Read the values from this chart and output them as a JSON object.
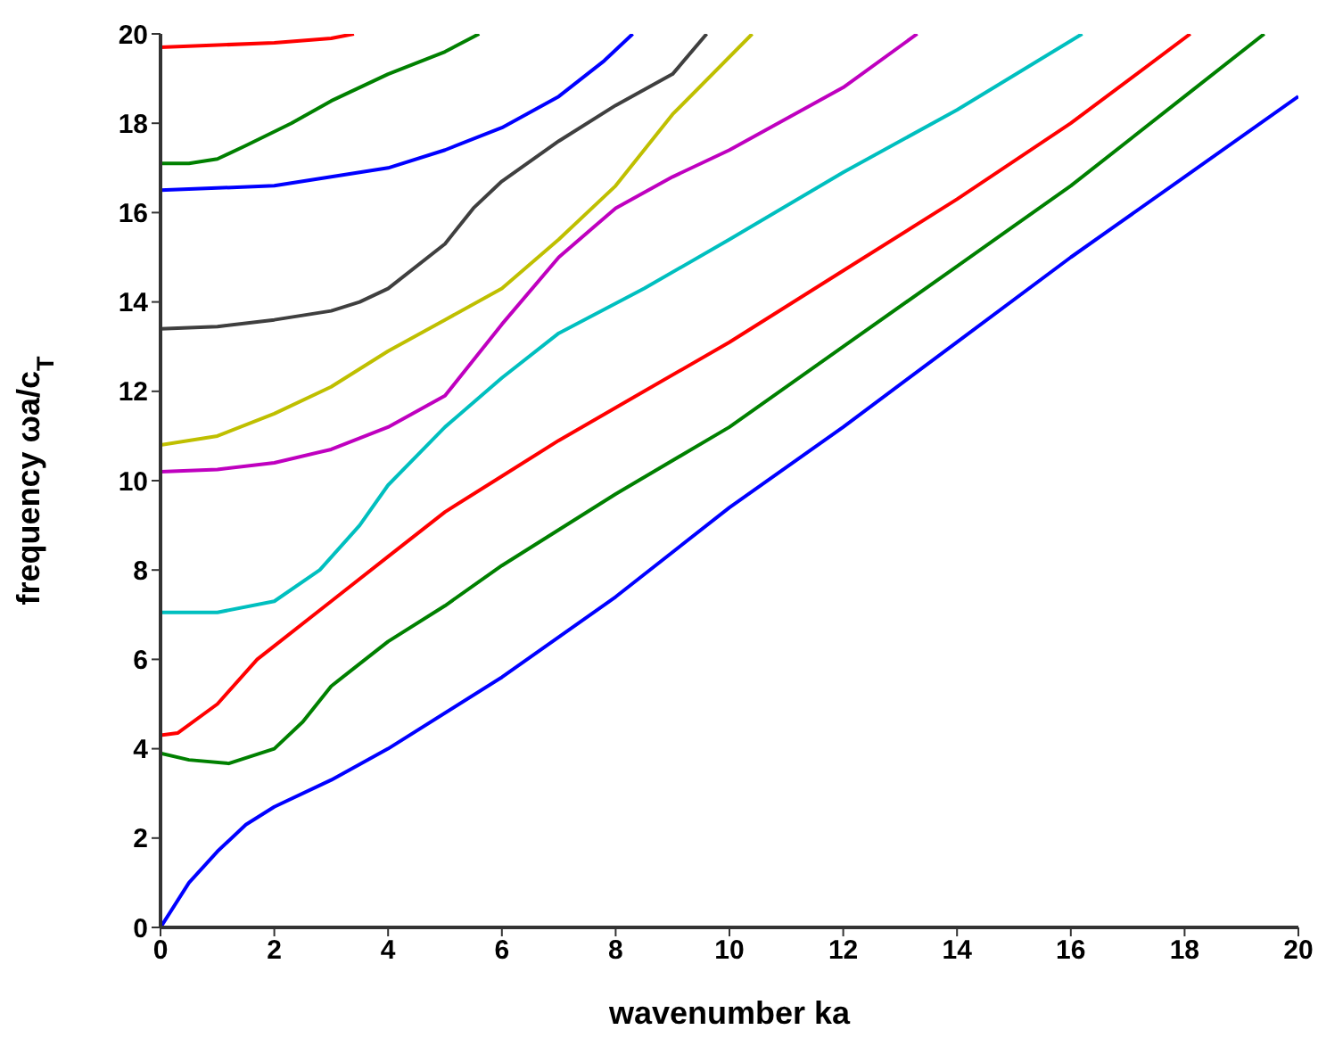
{
  "chart_data": {
    "type": "line",
    "xlabel": "wavenumber  ka",
    "ylabel": "frequency  ωa/c$_{T}$",
    "xlim": [
      0,
      20
    ],
    "ylim": [
      0,
      20
    ],
    "xticks": [
      0,
      2,
      4,
      6,
      8,
      10,
      12,
      14,
      16,
      18,
      20
    ],
    "yticks": [
      0,
      2,
      4,
      6,
      8,
      10,
      12,
      14,
      16,
      18,
      20
    ],
    "grid": false,
    "legend": false,
    "marker": "none",
    "line_style": "solid",
    "series": [
      {
        "color": "#0000ff",
        "x": [
          0,
          0.5,
          1,
          1.5,
          2,
          3,
          4,
          6,
          8,
          10,
          12,
          14,
          16,
          18,
          20
        ],
        "values": [
          0,
          1.0,
          1.7,
          2.3,
          2.7,
          3.3,
          4.0,
          5.6,
          7.4,
          9.4,
          11.2,
          13.1,
          15,
          16.8,
          18.6
        ]
      },
      {
        "color": "#008000",
        "x": [
          0,
          0.5,
          1.2,
          2,
          2.5,
          3,
          3.5,
          4,
          5,
          6,
          8,
          10,
          12,
          14,
          16,
          18,
          19.4
        ],
        "values": [
          3.9,
          3.75,
          3.67,
          4.0,
          4.6,
          5.4,
          5.9,
          6.4,
          7.2,
          8.1,
          9.7,
          11.2,
          13,
          14.8,
          16.6,
          18.6,
          20
        ]
      },
      {
        "color": "#ff0000",
        "x": [
          0,
          0.3,
          1,
          1.7,
          2,
          3,
          4,
          5,
          6,
          7,
          8.5,
          10,
          12,
          14,
          16,
          18.1
        ],
        "values": [
          4.3,
          4.35,
          5.0,
          6,
          6.3,
          7.3,
          8.3,
          9.3,
          10.1,
          10.9,
          12,
          13.1,
          14.7,
          16.3,
          18,
          20
        ]
      },
      {
        "color": "#00bfbf",
        "x": [
          0,
          1,
          2,
          2.8,
          3.5,
          4,
          5,
          6,
          7,
          8.5,
          10,
          12,
          14,
          16.2
        ],
        "values": [
          7.05,
          7.05,
          7.3,
          8,
          9,
          9.9,
          11.2,
          12.3,
          13.3,
          14.3,
          15.4,
          16.9,
          18.3,
          20
        ]
      },
      {
        "color": "#bf00bf",
        "x": [
          0,
          1,
          2,
          3,
          4,
          5,
          5.5,
          6,
          7,
          8,
          9,
          10,
          12,
          13.3
        ],
        "values": [
          10.2,
          10.25,
          10.4,
          10.7,
          11.2,
          11.9,
          12.7,
          13.5,
          15,
          16.1,
          16.8,
          17.4,
          18.8,
          20
        ]
      },
      {
        "color": "#bfbf00",
        "x": [
          0,
          1,
          2,
          3,
          4,
          5,
          6,
          7,
          8,
          9,
          10.4
        ],
        "values": [
          10.8,
          11.0,
          11.5,
          12.1,
          12.9,
          13.6,
          14.3,
          15.4,
          16.6,
          18.2,
          20
        ]
      },
      {
        "color": "#3f3f3f",
        "x": [
          0,
          1,
          2,
          3,
          3.5,
          4,
          5,
          5.5,
          6,
          7,
          8,
          9,
          9.6
        ],
        "values": [
          13.4,
          13.45,
          13.6,
          13.8,
          14,
          14.3,
          15.3,
          16.1,
          16.7,
          17.6,
          18.4,
          19.1,
          20
        ]
      },
      {
        "color": "#0000ff",
        "x": [
          0,
          2,
          4,
          5,
          6,
          7,
          7.8,
          8.3
        ],
        "values": [
          16.5,
          16.6,
          17.0,
          17.4,
          17.9,
          18.6,
          19.4,
          20
        ]
      },
      {
        "color": "#008000",
        "x": [
          0,
          0.5,
          1,
          1.5,
          2.3,
          3,
          4,
          5,
          5.6
        ],
        "values": [
          17.1,
          17.1,
          17.2,
          17.5,
          18,
          18.5,
          19.1,
          19.6,
          20
        ]
      },
      {
        "color": "#ff0000",
        "x": [
          0,
          1,
          2,
          3,
          3.4
        ],
        "values": [
          19.7,
          19.75,
          19.8,
          19.9,
          20
        ]
      }
    ]
  }
}
